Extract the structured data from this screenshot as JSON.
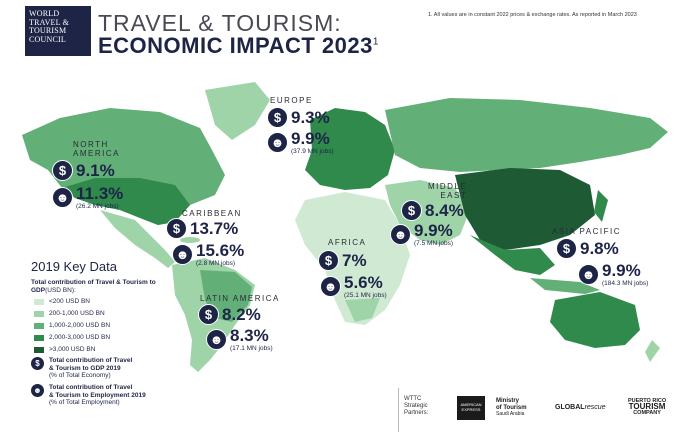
{
  "logo": {
    "line1": "World",
    "line2": "Travel &",
    "line3": "Tourism",
    "line4": "Council"
  },
  "title": {
    "line1": "TRAVEL & TOURISM:",
    "line2": "ECONOMIC IMPACT 2023",
    "marker": "1"
  },
  "footnote": "1. All values are in constant 2022 prices & exchange rates. As reported in March 2023",
  "regions": {
    "europe": {
      "name": "EUROPE",
      "gdp": "9.3%",
      "emp": "9.9%",
      "jobs": "(37.9 MN jobs)"
    },
    "north_america": {
      "name_1": "NORTH",
      "name_2": "AMERICA",
      "gdp": "9.1%",
      "emp": "11.3%",
      "jobs": "(26.2 MN jobs)"
    },
    "caribbean": {
      "name": "CARIBBEAN",
      "gdp": "13.7%",
      "emp": "15.6%",
      "jobs": "(2.8 MN jobs)"
    },
    "middle_east": {
      "name_1": "MIDDLE",
      "name_2": "EAST",
      "gdp": "8.4%",
      "emp": "9.9%",
      "jobs": "(7.5 MN jobs)"
    },
    "africa": {
      "name": "AFRICA",
      "gdp": "7%",
      "emp": "5.6%",
      "jobs": "(25.1 MN jobs)"
    },
    "asia_pacific": {
      "name": "ASIA PACIFIC",
      "gdp": "9.8%",
      "emp": "9.9%",
      "jobs": "(184.3 MN jobs)"
    },
    "latin_america": {
      "name": "LATIN AMERICA",
      "gdp": "8.2%",
      "emp": "8.3%",
      "jobs": "(17.1 MN jobs)"
    }
  },
  "key": {
    "title": "2019 Key Data",
    "subtitle": "Total contribution of Travel & Tourism to GDP",
    "subtitle_unit": "(USD BN):",
    "legend": [
      {
        "label": "<200 USD BN",
        "color": "#cfe9d3"
      },
      {
        "label": "200-1,000 USD BN",
        "color": "#9fd3a8"
      },
      {
        "label": "1,000-2,000 USD BN",
        "color": "#62b078"
      },
      {
        "label": "2,000-3,000 USD BN",
        "color": "#2f8a4c"
      },
      {
        "label": ">3,000 USD BN",
        "color": "#1e5a34"
      }
    ],
    "gdp_desc_1": "Total contribution of Travel",
    "gdp_desc_2": "& Tourism to GDP 2019",
    "gdp_desc_3": "(% of Total Economy)",
    "emp_desc_1": "Total contribution of Travel",
    "emp_desc_2": "& Tourism to Employment 2019",
    "emp_desc_3": "(% of Total Employment)"
  },
  "partners": {
    "label_1": "WTTC",
    "label_2": "Strategic",
    "label_3": "Partners:",
    "amex": "AMERICAN EXPRESS",
    "mot_1": "Ministry",
    "mot_2": "of Tourism",
    "mot_3": "Saudi Arabia",
    "global_1": "GLOBAL",
    "global_2": "rescue",
    "pr_1": "PUERTO RICO",
    "pr_2": "TOURISM",
    "pr_3": "COMPANY"
  },
  "icons": {
    "gdp": "dollar-icon",
    "employment": "person-icon"
  },
  "colors": {
    "navy": "#1d2446",
    "lightest": "#cfe9d3",
    "light": "#9fd3a8",
    "mid": "#62b078",
    "dark": "#2f8a4c",
    "darkest": "#1e5a34"
  }
}
